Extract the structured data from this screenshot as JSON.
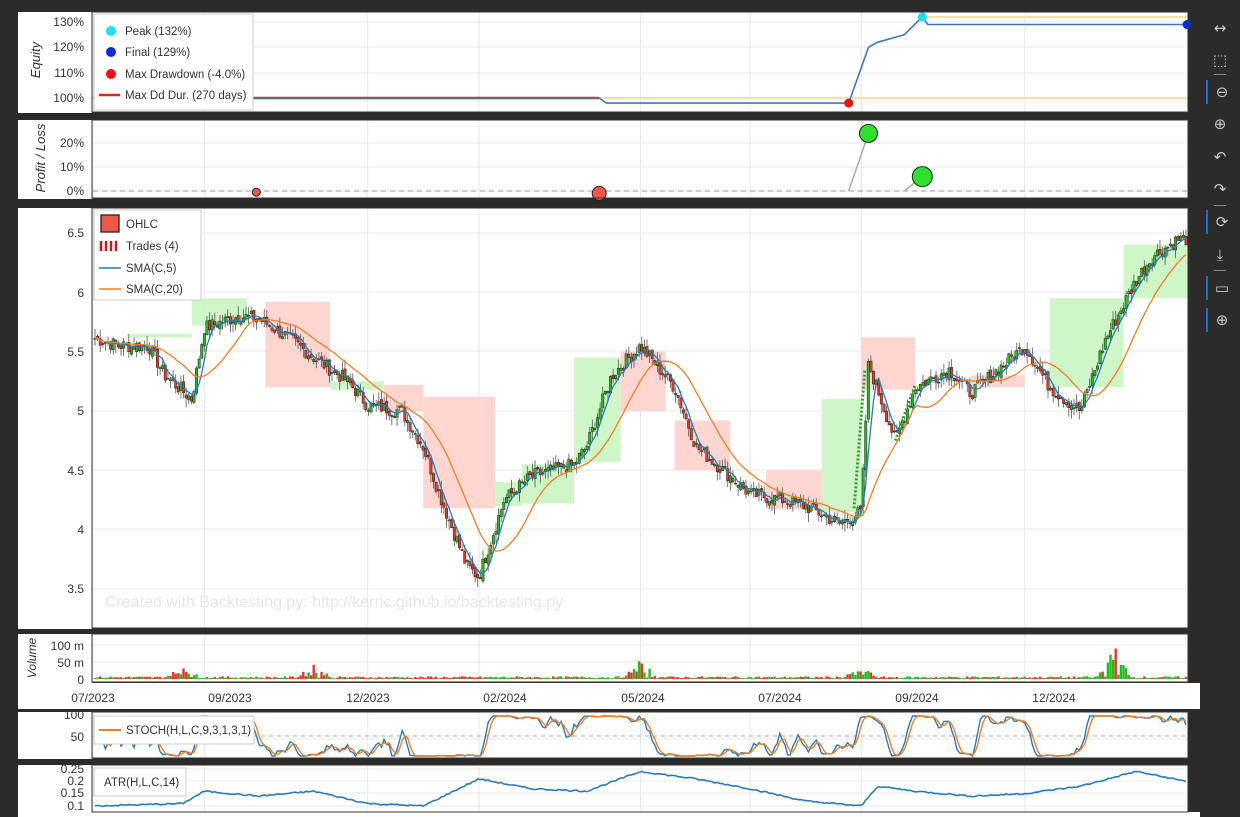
{
  "watermark": "Created with Backtesting.py: http://kernc.github.io/backtesting.py",
  "equity_panel": {
    "ylabel": "Equity",
    "ticks": [
      "130%",
      "120%",
      "110%",
      "100%"
    ],
    "legend": [
      {
        "label": "Peak (132%)",
        "color": "#22ddee",
        "kind": "dot"
      },
      {
        "label": "Final (129%)",
        "color": "#0a2fd9",
        "kind": "dot"
      },
      {
        "label": "Max Drawdown (-4.0%)",
        "color": "#ee1111",
        "kind": "dot"
      },
      {
        "label": "Max Dd Dur. (270 days)",
        "color": "#dd2222",
        "kind": "line"
      }
    ]
  },
  "pl_panel": {
    "ylabel": "Profit / Loss",
    "ticks": [
      "20%",
      "10%",
      "0%"
    ]
  },
  "price_panel": {
    "ticks": [
      "6.5",
      "6",
      "5.5",
      "5",
      "4.5",
      "4",
      "3.5"
    ],
    "legend": [
      {
        "label": "OHLC"
      },
      {
        "label": "Trades (4)"
      },
      {
        "label": "SMA(C,5)"
      },
      {
        "label": "SMA(C,20)"
      }
    ]
  },
  "volume_panel": {
    "ylabel": "Volume",
    "ticks": [
      "100 m",
      "50 m",
      "0"
    ],
    "dates": [
      "07/2023",
      "09/2023",
      "12/2023",
      "02/2024",
      "05/2024",
      "07/2024",
      "09/2024",
      "12/2024"
    ]
  },
  "stoch_panel": {
    "ticks": [
      "100",
      "50"
    ],
    "legend": "STOCH(H,L,C,9,3,1,3,1)"
  },
  "atr_panel": {
    "ticks": [
      "0.25",
      "0.2",
      "0.15",
      "0.1"
    ],
    "legend": "ATR(H,L,C,14)"
  },
  "colors": {
    "up": "#22bb22",
    "down": "#e03a2a",
    "sma5": "#2a7ab8",
    "sma20": "#f07e26",
    "profit_fill": "#c9f5c0",
    "loss_fill": "#fdd0cc",
    "equity": "#3a7ab8",
    "drawdown": "#f5d78a"
  },
  "toolbar": [
    "pan-icon",
    "box-zoom-icon",
    "wheel-zoom-x-icon",
    "wheel-zoom-y-icon",
    "undo-icon",
    "redo-icon",
    "reset-icon",
    "save-icon",
    "hover-icon",
    "crosshair-icon"
  ],
  "chart_data": {
    "type": "line",
    "price_ohlc_closes": [
      {
        "date": "2023-07",
        "close": 5.62
      },
      {
        "date": "2023-07-15",
        "close": 5.55
      },
      {
        "date": "2023-08",
        "close": 5.55
      },
      {
        "date": "2023-08-10",
        "close": 5.3
      },
      {
        "date": "2023-08-25",
        "close": 5.1
      },
      {
        "date": "2023-09",
        "close": 5.7
      },
      {
        "date": "2023-09-20",
        "close": 5.8
      },
      {
        "date": "2023-10",
        "close": 5.78
      },
      {
        "date": "2023-10-15",
        "close": 5.65
      },
      {
        "date": "2023-11",
        "close": 5.45
      },
      {
        "date": "2023-11-20",
        "close": 5.25
      },
      {
        "date": "2023-12",
        "close": 5.05
      },
      {
        "date": "2023-12-20",
        "close": 5.0
      },
      {
        "date": "2024-01",
        "close": 4.7
      },
      {
        "date": "2024-01-10",
        "close": 4.3
      },
      {
        "date": "2024-01-25",
        "close": 3.7
      },
      {
        "date": "2024-02",
        "close": 3.6
      },
      {
        "date": "2024-02-15",
        "close": 4.25
      },
      {
        "date": "2024-03",
        "close": 4.45
      },
      {
        "date": "2024-03-25",
        "close": 4.55
      },
      {
        "date": "2024-04",
        "close": 4.7
      },
      {
        "date": "2024-04-15",
        "close": 5.3
      },
      {
        "date": "2024-05",
        "close": 5.55
      },
      {
        "date": "2024-05-20",
        "close": 5.2
      },
      {
        "date": "2024-06",
        "close": 4.7
      },
      {
        "date": "2024-06-20",
        "close": 4.45
      },
      {
        "date": "2024-07",
        "close": 4.3
      },
      {
        "date": "2024-07-20",
        "close": 4.25
      },
      {
        "date": "2024-08",
        "close": 4.2
      },
      {
        "date": "2024-08-20",
        "close": 4.05
      },
      {
        "date": "2024-09",
        "close": 4.15
      },
      {
        "date": "2024-09-05",
        "close": 5.4
      },
      {
        "date": "2024-09-20",
        "close": 4.75
      },
      {
        "date": "2024-10",
        "close": 5.2
      },
      {
        "date": "2024-10-20",
        "close": 5.35
      },
      {
        "date": "2024-11",
        "close": 5.15
      },
      {
        "date": "2024-11-20",
        "close": 5.4
      },
      {
        "date": "2024-12",
        "close": 5.55
      },
      {
        "date": "2024-12-15",
        "close": 5.2
      },
      {
        "date": "2025-01",
        "close": 5.0
      },
      {
        "date": "2025-01-15",
        "close": 5.6
      },
      {
        "date": "2025-02",
        "close": 6.1
      },
      {
        "date": "2025-02-10",
        "close": 6.3
      },
      {
        "date": "2025-02-25",
        "close": 6.45
      }
    ],
    "equity_pct": [
      {
        "date": "2023-07",
        "value": 100
      },
      {
        "date": "2024-04-08",
        "value": 100
      },
      {
        "date": "2024-04-12",
        "value": 98
      },
      {
        "date": "2024-08-25",
        "value": 98
      },
      {
        "date": "2024-09-05",
        "value": 120
      },
      {
        "date": "2024-09-10",
        "value": 122
      },
      {
        "date": "2024-09-25",
        "value": 125
      },
      {
        "date": "2024-10-05",
        "value": 132
      },
      {
        "date": "2024-10-08",
        "value": 129
      },
      {
        "date": "2025-03",
        "value": 129
      }
    ],
    "trades_pl_pct": [
      {
        "date": "2023-09-30",
        "pl": -0.5
      },
      {
        "date": "2024-04-08",
        "pl": -1.0
      },
      {
        "date": "2024-09-05",
        "pl": 24
      },
      {
        "date": "2024-10-05",
        "pl": 6
      }
    ],
    "volume_m_peaks": [
      {
        "date": "2023-08-20",
        "value": 40
      },
      {
        "date": "2023-11",
        "value": 45
      },
      {
        "date": "2024-05",
        "value": 50
      },
      {
        "date": "2024-09-01",
        "value": 35
      },
      {
        "date": "2025-01-20",
        "value": 100
      }
    ],
    "stoch_range": [
      0,
      100
    ],
    "atr_points": [
      {
        "date": "2023-07",
        "value": 0.1
      },
      {
        "date": "2023-08-20",
        "value": 0.11
      },
      {
        "date": "2023-09",
        "value": 0.16
      },
      {
        "date": "2023-10",
        "value": 0.14
      },
      {
        "date": "2023-11",
        "value": 0.16
      },
      {
        "date": "2023-12",
        "value": 0.11
      },
      {
        "date": "2024-01",
        "value": 0.1
      },
      {
        "date": "2024-02",
        "value": 0.21
      },
      {
        "date": "2024-03",
        "value": 0.17
      },
      {
        "date": "2024-04",
        "value": 0.16
      },
      {
        "date": "2024-05",
        "value": 0.24
      },
      {
        "date": "2024-06",
        "value": 0.21
      },
      {
        "date": "2024-07",
        "value": 0.17
      },
      {
        "date": "2024-08",
        "value": 0.12
      },
      {
        "date": "2024-09",
        "value": 0.1
      },
      {
        "date": "2024-09-10",
        "value": 0.18
      },
      {
        "date": "2024-10",
        "value": 0.16
      },
      {
        "date": "2024-11",
        "value": 0.14
      },
      {
        "date": "2024-12",
        "value": 0.15
      },
      {
        "date": "2025-01",
        "value": 0.18
      },
      {
        "date": "2025-02",
        "value": 0.24
      },
      {
        "date": "2025-03",
        "value": 0.2
      }
    ]
  }
}
